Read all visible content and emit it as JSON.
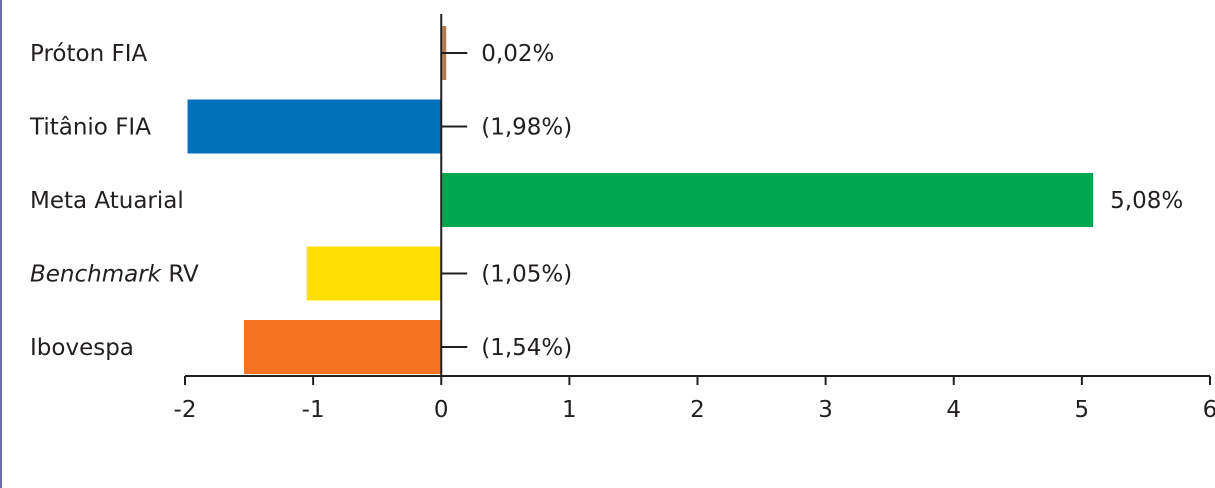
{
  "chart_data": {
    "type": "bar",
    "orientation": "horizontal",
    "title": "",
    "xlabel": "",
    "ylabel": "",
    "xlim": [
      -2,
      6
    ],
    "ticks": [
      -2,
      -1,
      0,
      1,
      2,
      3,
      4,
      5,
      6
    ],
    "grid": false,
    "categories": [
      {
        "prefix": "Próton FIA",
        "italic": "",
        "suffix": ""
      },
      {
        "prefix": "Titânio FIA",
        "italic": "",
        "suffix": ""
      },
      {
        "prefix": "Meta Atuarial",
        "italic": "",
        "suffix": ""
      },
      {
        "prefix": "",
        "italic": "Benchmark",
        "suffix": " RV"
      },
      {
        "prefix": "Ibovespa",
        "italic": "",
        "suffix": ""
      }
    ],
    "values": [
      0.02,
      -1.98,
      5.08,
      -1.05,
      -1.54
    ],
    "data_labels": [
      "0,02%",
      "(1,98%)",
      "5,08%",
      "(1,05%)",
      "(1,54%)"
    ],
    "colors": [
      "#b07d4f",
      "#0070ba",
      "#00a650",
      "#ffe000",
      "#f37321"
    ]
  }
}
